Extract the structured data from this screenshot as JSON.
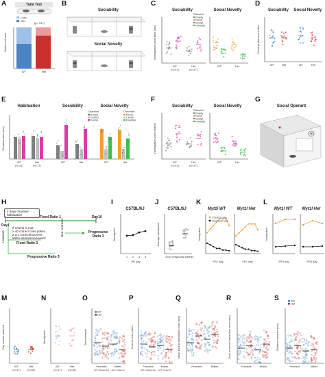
{
  "panels": {
    "A": {
      "letter": "A",
      "title": "Tube Test",
      "legend": [
        "Loss",
        "Win"
      ],
      "n_label": "(p= 017)",
      "ylabel": "Number of mice",
      "categories": [
        "WT",
        "Het"
      ],
      "ylim": [
        0,
        100
      ]
    },
    "B": {
      "letter": "B",
      "labels": [
        "Sociability",
        "Social Novelty"
      ]
    },
    "C": {
      "letter": "C",
      "titles": [
        "Sociability",
        "Social Novelty"
      ],
      "ylabel": "Investigation zone time (sec)",
      "legend_title": "Stimulus",
      "legend": [
        "Empty",
        "Novel",
        "Social",
        "Familiar"
      ],
      "groups": [
        "WT\n(n=21)",
        "Het\n(n=17)"
      ],
      "groups_short": [
        "WT",
        "Het"
      ],
      "wt_n": "(n=21)",
      "het_n": "(n=17)"
    },
    "D": {
      "letter": "D",
      "titles": [
        "Sociability",
        "Social Novelty"
      ],
      "ylabel": "Social preference index",
      "groups": [
        "WT",
        "Het"
      ]
    },
    "E": {
      "letter": "E",
      "titles": [
        "Habituation",
        "Sociability",
        "Social Novelty"
      ],
      "ylabel": "Chamber time (sec)",
      "legend_title": "Chamber",
      "legend": [
        "Empty",
        "Center",
        "Social"
      ],
      "legend2_title": "Chamber",
      "legend2": [
        "Novel",
        "Center",
        "Familiar"
      ],
      "groups": [
        "WT",
        "Het"
      ],
      "wt_n": "(n=21)",
      "het_n": "(n=17)"
    },
    "F": {
      "letter": "F",
      "titles": [
        "Sociability",
        "Social Novelty"
      ],
      "ylabel": "Investigation zone entries",
      "legend_title": "Stimulus",
      "legend": [
        "Empty",
        "Novel",
        "Social",
        "Familiar"
      ],
      "groups": [
        "WT",
        "Het"
      ],
      "wt_n": "(n=21)",
      "het_n": "(n=17)"
    },
    "G": {
      "letter": "G",
      "title": "Social Operant"
    },
    "H": {
      "letter": "H",
      "day1": "Day1",
      "day10": "Day10",
      "habituation": "2 days chamber habituation",
      "fixed_ratio": "Fixed Ratio 1",
      "criteria": [
        "If criteria is met:",
        "≥ 40 correct nose pokes",
        "≥ 3:1 correct/incorrect",
        "≥50% interaction/reward"
      ],
      "learners": "Learners",
      "non_learners": "Non-Learners",
      "fr3": "Fixed Ratio 3",
      "pr3": "Progressive Ratio 3",
      "pr3_short": "Progressive\nRatio 3"
    },
    "I": {
      "letter": "I",
      "title": "C57BL/6J",
      "ylabel": "Breakpoint",
      "xlabel": "PR day",
      "x": [
        1,
        2,
        3,
        4
      ]
    },
    "J": {
      "letter": "J",
      "title": "C57BL/6J",
      "ylabel": "Average breakpoint",
      "categories": [
        "Door only",
        "Social partner"
      ]
    },
    "K": {
      "letter": "K",
      "titles": [
        "Myt1l WT",
        "Myt1l Het"
      ],
      "ylabel": "Nosepokes",
      "xlabel": "FR1 day",
      "legend": [
        "Correct hole",
        "Incorrect hole"
      ]
    },
    "L": {
      "letter": "L",
      "titles": [
        "Myt1l WT",
        "Myt1l Het"
      ],
      "ylabel": "Nosepokes",
      "xlabel": "FR3 day"
    },
    "M": {
      "letter": "M",
      "ylabel": "Day criteria reached",
      "groups": [
        "WT",
        "Het"
      ],
      "n": [
        "(n=17)",
        "(n=18)"
      ]
    },
    "N": {
      "letter": "N",
      "ylabel": "Breakpoint",
      "groups": [
        "WT",
        "Het"
      ],
      "n": [
        "(n=17)",
        "(n=18)"
      ]
    },
    "O": {
      "letter": "O",
      "ylabel": "Total rewards",
      "legend": [
        "WT",
        "Het"
      ],
      "groups": [
        "Females",
        "Males"
      ],
      "n": [
        "(WT=10/Het=12)",
        "(WT=7/Het=6)"
      ]
    },
    "P": {
      "letter": "P",
      "ylabel": "Correct nose pokes",
      "groups": [
        "Females",
        "Males"
      ],
      "n": [
        "(WT=10/Het=12)",
        "(WT=7/Het=6)"
      ]
    },
    "Q": {
      "letter": "Q",
      "ylabel": "Mean bout in interaction zone (sec)",
      "groups": [
        "Females",
        "Males"
      ]
    },
    "R": {
      "letter": "R",
      "ylabel": "Time in social interaction zone (sec)",
      "groups": [
        "Females",
        "Males"
      ]
    },
    "S": {
      "letter": "S",
      "ylabel": "Distance traveled (cm)",
      "legend": [
        "WT",
        "Het"
      ],
      "groups": [
        "Females",
        "Males"
      ]
    }
  },
  "colors": {
    "wt_blue": "#4a84c4",
    "het_red": "#c9302c",
    "wt_light": "#9cc0e6",
    "het_light": "#ef9a9a",
    "novel_orange": "#f0a030",
    "social_pink": "#d63fa8",
    "familiar_green": "#3cc04a",
    "empty_gray": "#808080",
    "center_gray": "#c0c0c0"
  },
  "chart_data": [
    {
      "type": "bar",
      "panel": "A",
      "categories": [
        "WT",
        "Het"
      ],
      "series": [
        {
          "name": "Loss",
          "values": [
            40,
            20
          ]
        },
        {
          "name": "Win",
          "values": [
            60,
            80
          ]
        }
      ],
      "ylabel": "Number of mice",
      "ylim": [
        0,
        100
      ]
    },
    {
      "type": "scatter",
      "panel": "C",
      "title": "Sociability",
      "ylabel": "Investigation zone time (sec)",
      "ylim": [
        0,
        200
      ]
    },
    {
      "type": "line",
      "panel": "I",
      "title": "C57BL/6J",
      "x": [
        1,
        2,
        3,
        4
      ],
      "values": [
        27,
        28,
        32,
        34
      ],
      "xlabel": "PR day",
      "ylabel": "Breakpoint",
      "ylim": [
        0,
        60
      ]
    },
    {
      "type": "scatter",
      "panel": "J",
      "categories": [
        "Door only",
        "Social partner"
      ],
      "values": [
        12,
        30
      ],
      "ylim": [
        0,
        60
      ]
    },
    {
      "type": "line",
      "panel": "K",
      "series": [
        {
          "name": "Correct hole",
          "values": [
            60,
            70,
            80,
            90,
            100,
            100,
            100,
            80
          ]
        },
        {
          "name": "Incorrect hole",
          "values": [
            30,
            25,
            20,
            15,
            15,
            10,
            10,
            8
          ]
        }
      ],
      "xlabel": "FR1 day",
      "ylabel": "Nosepokes"
    }
  ]
}
